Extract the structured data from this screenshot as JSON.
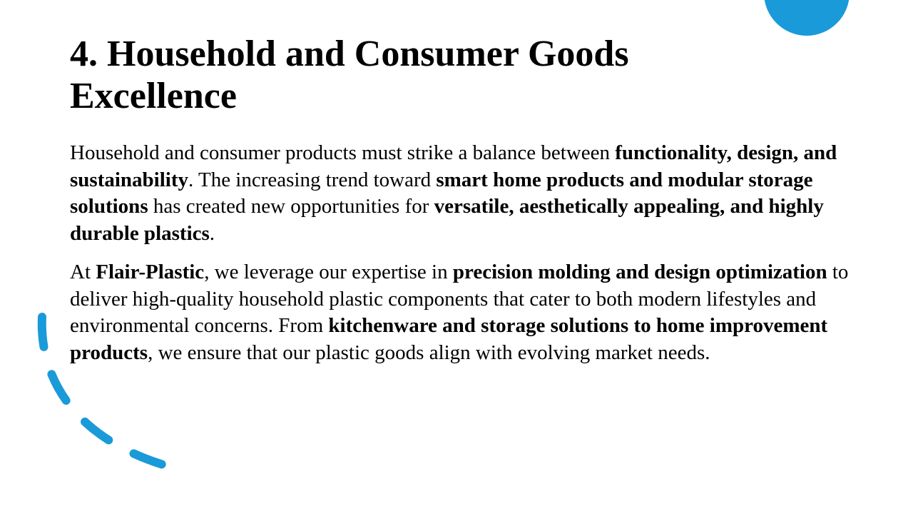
{
  "colors": {
    "accent": "#1a9ad8",
    "text": "#000000",
    "background": "#ffffff"
  },
  "decorations": {
    "corner_circle": "circle-shape",
    "left_curve": "dashed-curve-shape"
  },
  "slide": {
    "title_line1": "4. Household and Consumer Goods",
    "title_line2": "Excellence",
    "paragraph1": {
      "s1": "Household and consumer products must strike a balance between ",
      "b1": "functionality, design, and sustainability",
      "s2": ". The increasing trend toward ",
      "b2": "smart home products and modular storage solutions",
      "s3": " has created new opportunities for ",
      "b3": "versatile, aesthetically appealing, and highly durable plastics",
      "s4": "."
    },
    "paragraph2": {
      "s1": "At ",
      "b1": "Flair-Plastic",
      "s2": ", we leverage our expertise in ",
      "b2": "precision molding and design optimization",
      "s3": " to deliver high-quality household plastic components that cater to both modern lifestyles and environmental concerns. From ",
      "b3": "kitchenware and storage solutions to home improvement products",
      "s4": ", we ensure that our plastic goods align with evolving market needs."
    }
  }
}
